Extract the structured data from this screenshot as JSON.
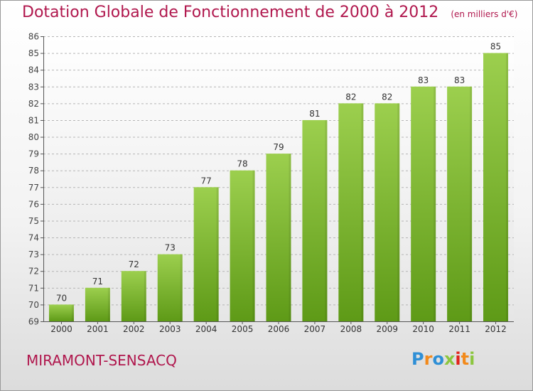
{
  "chart_data": {
    "type": "bar",
    "title": "Dotation Globale de Fonctionnement de 2000 à 2012",
    "subtitle": "(en milliers d'€)",
    "categories": [
      "2000",
      "2001",
      "2002",
      "2003",
      "2004",
      "2005",
      "2006",
      "2007",
      "2008",
      "2009",
      "2010",
      "2011",
      "2012"
    ],
    "values": [
      70,
      71,
      72,
      73,
      77,
      78,
      79,
      81,
      82,
      82,
      83,
      83,
      85
    ],
    "ylim": [
      69,
      86
    ],
    "yticks": [
      69,
      70,
      71,
      72,
      73,
      74,
      75,
      76,
      77,
      78,
      79,
      80,
      81,
      82,
      83,
      84,
      85,
      86
    ],
    "xlabel": "",
    "ylabel": "",
    "grid": true,
    "colors": {
      "bar_light": "#9ccf4e",
      "bar_dark": "#5e9a17",
      "title": "#b0174d"
    }
  },
  "footer": {
    "commune": "MIRAMONT-SENSACQ",
    "logo_letters": [
      {
        "ch": "P",
        "color": "#2e8fd6"
      },
      {
        "ch": "r",
        "color": "#f28a1c"
      },
      {
        "ch": "o",
        "color": "#2e8fd6"
      },
      {
        "ch": "x",
        "color": "#8cc63f"
      },
      {
        "ch": "i",
        "color": "#e2231a"
      },
      {
        "ch": "t",
        "color": "#f28a1c"
      },
      {
        "ch": "i",
        "color": "#8cc63f"
      }
    ]
  }
}
